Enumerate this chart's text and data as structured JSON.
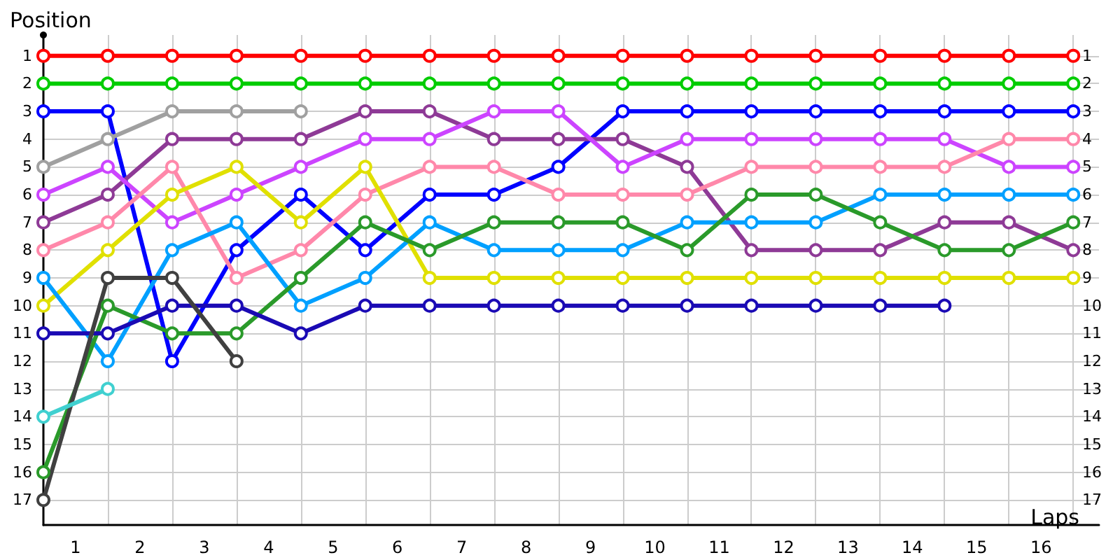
{
  "chart_data": {
    "type": "line",
    "ylabel": "Position",
    "xlabel": "Laps",
    "x": [
      0,
      1,
      2,
      3,
      4,
      5,
      6,
      7,
      8,
      9,
      10,
      11,
      12,
      13,
      14,
      15,
      16
    ],
    "xlim": [
      0,
      16.4
    ],
    "xticks": [
      {
        "value": 0.5,
        "label": "1"
      },
      {
        "value": 1.5,
        "label": "2"
      },
      {
        "value": 2.5,
        "label": "3"
      },
      {
        "value": 3.5,
        "label": "4"
      },
      {
        "value": 4.5,
        "label": "5"
      },
      {
        "value": 5.5,
        "label": "6"
      },
      {
        "value": 6.5,
        "label": "7"
      },
      {
        "value": 7.5,
        "label": "8"
      },
      {
        "value": 8.5,
        "label": "9"
      },
      {
        "value": 9.5,
        "label": "10"
      },
      {
        "value": 10.5,
        "label": "11"
      },
      {
        "value": 11.5,
        "label": "12"
      },
      {
        "value": 12.5,
        "label": "13"
      },
      {
        "value": 13.5,
        "label": "14"
      },
      {
        "value": 14.5,
        "label": "15"
      },
      {
        "value": 15.5,
        "label": "16"
      },
      {
        "value": 1,
        "label": null
      },
      {
        "value": 2,
        "label": null
      },
      {
        "value": 3,
        "label": null
      },
      {
        "value": 4,
        "label": null
      },
      {
        "value": 5,
        "label": null
      },
      {
        "value": 6,
        "label": null
      },
      {
        "value": 7,
        "label": null
      },
      {
        "value": 8,
        "label": null
      },
      {
        "value": 9,
        "label": null
      },
      {
        "value": 10,
        "label": null
      },
      {
        "value": 11,
        "label": null
      },
      {
        "value": 12,
        "label": null
      },
      {
        "value": 13,
        "label": null
      },
      {
        "value": 14,
        "label": null
      },
      {
        "value": 15,
        "label": null
      },
      {
        "value": 16,
        "label": null
      }
    ],
    "ylim": [
      17.9,
      0.25
    ],
    "yticks": [
      1,
      2,
      3,
      4,
      5,
      6,
      7,
      8,
      9,
      10,
      11,
      12,
      13,
      14,
      15,
      16,
      17
    ],
    "y2lim": [
      17.9,
      0.25
    ],
    "y2ticks": [
      1,
      2,
      3,
      4,
      5,
      6,
      7,
      8,
      9,
      10,
      11,
      12,
      13,
      14,
      15,
      16,
      17
    ],
    "grid": true,
    "marker": "circle",
    "line_style": "solid",
    "series": [
      {
        "color": "#ff0000",
        "values": [
          1,
          1,
          1,
          1,
          1,
          1,
          1,
          1,
          1,
          1,
          1,
          1,
          1,
          1,
          1,
          1,
          1
        ]
      },
      {
        "color": "#00cc00",
        "values": [
          2,
          2,
          2,
          2,
          2,
          2,
          2,
          2,
          2,
          2,
          2,
          2,
          2,
          2,
          2,
          2,
          2
        ]
      },
      {
        "color": "#0000ff",
        "values": [
          3,
          3,
          12,
          8,
          6,
          8,
          6,
          6,
          5,
          3,
          3,
          3,
          3,
          3,
          3,
          3,
          3
        ]
      },
      {
        "color": "#a0a0a0",
        "values": [
          5,
          4,
          3,
          3,
          3,
          null,
          null,
          null,
          null,
          null,
          null,
          null,
          null,
          null,
          null,
          null,
          null
        ]
      },
      {
        "color": "#8e3a96",
        "values": [
          7,
          6,
          4,
          4,
          4,
          3,
          3,
          4,
          4,
          4,
          5,
          8,
          8,
          8,
          7,
          7,
          8
        ]
      },
      {
        "color": "#cc44ff",
        "values": [
          6,
          5,
          7,
          6,
          5,
          4,
          4,
          3,
          3,
          5,
          4,
          4,
          4,
          4,
          4,
          5,
          5
        ]
      },
      {
        "color": "#ff88aa",
        "values": [
          8,
          7,
          5,
          9,
          8,
          6,
          5,
          5,
          6,
          6,
          6,
          5,
          5,
          5,
          5,
          4,
          4
        ]
      },
      {
        "color": "#e0e000",
        "values": [
          10,
          8,
          6,
          5,
          7,
          5,
          9,
          9,
          9,
          9,
          9,
          9,
          9,
          9,
          9,
          9,
          9
        ]
      },
      {
        "color": "#00a0ff",
        "values": [
          9,
          12,
          8,
          7,
          10,
          9,
          7,
          8,
          8,
          8,
          7,
          7,
          7,
          6,
          6,
          6,
          6
        ]
      },
      {
        "color": "#2a9a2a",
        "values": [
          16,
          10,
          11,
          11,
          9,
          7,
          8,
          7,
          7,
          7,
          8,
          6,
          6,
          7,
          8,
          8,
          7
        ]
      },
      {
        "color": "#1a0ab4",
        "values": [
          11,
          11,
          10,
          10,
          11,
          10,
          10,
          10,
          10,
          10,
          10,
          10,
          10,
          10,
          10,
          null,
          null
        ]
      },
      {
        "color": "#404040",
        "values": [
          17,
          9,
          9,
          12,
          null,
          null,
          null,
          null,
          null,
          null,
          null,
          null,
          null,
          null,
          null,
          null,
          null
        ]
      },
      {
        "color": "#40d0d0",
        "values": [
          14,
          13,
          null,
          null,
          null,
          null,
          null,
          null,
          null,
          null,
          null,
          null,
          null,
          null,
          null,
          null,
          null
        ]
      }
    ]
  }
}
